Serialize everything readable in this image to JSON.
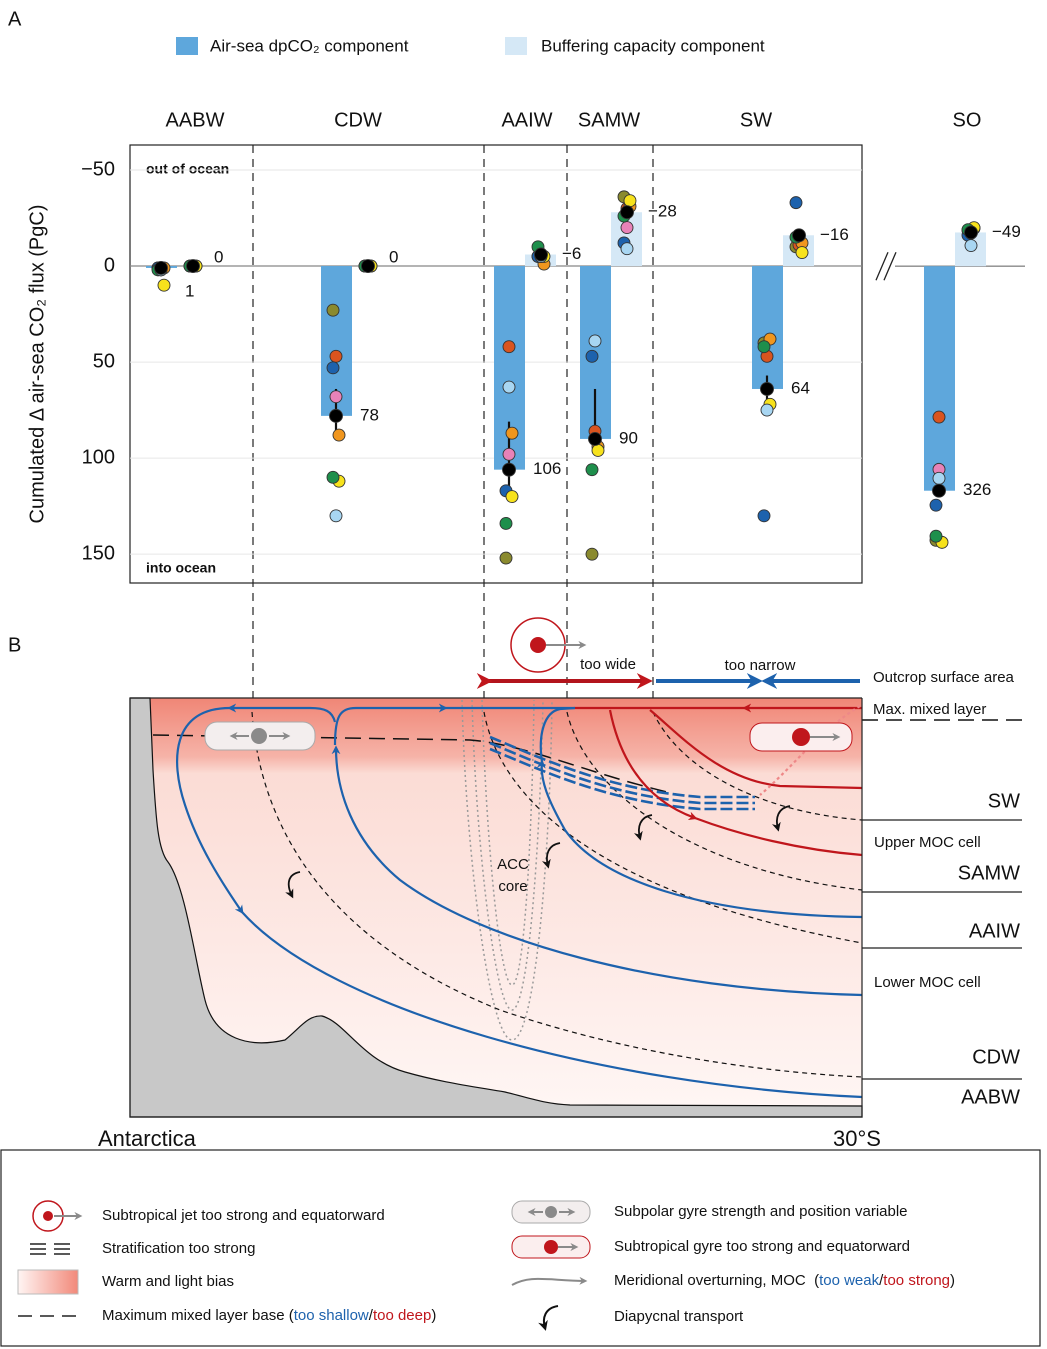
{
  "panel_labels": [
    "A",
    "B"
  ],
  "chart_data": [
    {
      "type": "bar",
      "y_label": "Cumulated Δ air-sea CO₂ flux (PgC)",
      "annotations": [
        "out of ocean",
        "into ocean"
      ],
      "categories": [
        "AABW",
        "CDW",
        "AAIW",
        "SAMW",
        "SW"
      ],
      "series": [
        {
          "name": "Air-sea dpCO₂ component",
          "color": "#5ea7dc",
          "values": [
            1,
            78,
            106,
            90,
            64
          ],
          "whiskers": [
            null,
            [
              64,
              88
            ],
            [
              81,
              117
            ],
            [
              64,
              96
            ],
            [
              57,
              72
            ]
          ]
        },
        {
          "name": "Buffering capacity component",
          "color": "#d5e8f6",
          "values": [
            0,
            0,
            -6,
            -28,
            -16
          ],
          "value_labels": [
            "0",
            "0",
            "−6",
            "−28",
            "−16"
          ]
        }
      ],
      "mean_color": "#000000",
      "model_points": [
        {
          "color": "#8a8a2e",
          "values": [
            1,
            23,
            152,
            150,
            40
          ],
          "buffer_values": [
            0,
            0,
            -5,
            -36,
            -10
          ]
        },
        {
          "color": "#d9541f",
          "values": [
            1,
            47,
            42,
            86,
            47
          ],
          "buffer_values": [
            0,
            0,
            -5,
            -30,
            -11
          ]
        },
        {
          "color": "#f0961e",
          "values": [
            1,
            88,
            87,
            94,
            38
          ],
          "buffer_values": [
            0,
            0,
            -1,
            -31,
            -12
          ]
        },
        {
          "color": "#1d62ad",
          "values": [
            1,
            53,
            117,
            47,
            130
          ],
          "buffer_values": [
            0,
            0,
            -5,
            -12,
            -33
          ]
        },
        {
          "color": "#e882b8",
          "values": [
            2,
            68,
            98,
            null,
            null
          ],
          "buffer_values": [
            0,
            0,
            -5,
            -20,
            null
          ]
        },
        {
          "color": "#f7e21c",
          "values": [
            10,
            112,
            120,
            96,
            72
          ],
          "buffer_values": [
            0,
            0,
            -5,
            -34,
            -7
          ]
        },
        {
          "color": "#1e8f4c",
          "values": [
            2,
            110,
            134,
            106,
            42
          ],
          "buffer_values": [
            0,
            0,
            -10,
            -26,
            -15
          ]
        },
        {
          "color": "#a8d6f2",
          "values": [
            2,
            130,
            63,
            39,
            75
          ],
          "buffer_values": [
            0,
            0,
            -5,
            -9,
            -16
          ]
        }
      ],
      "ylim": [
        -63,
        165
      ],
      "inverted": true,
      "yticks": [
        {
          "value": -50,
          "label": "−50"
        },
        0,
        50,
        100,
        150
      ],
      "grid": true
    },
    {
      "type": "bar",
      "categories": [
        "SO"
      ],
      "series": [
        {
          "color": "#5ea7dc",
          "values": [
            326
          ]
        },
        {
          "color": "#d5e8f6",
          "values": [
            -49
          ],
          "value_labels": [
            "−49"
          ]
        }
      ],
      "mean_color": "#000000",
      "model_points": [
        {
          "color": "#8a8a2e",
          "values": [
            398
          ],
          "buffer_values": [
            -52
          ]
        },
        {
          "color": "#d9541f",
          "values": [
            219
          ],
          "buffer_values": [
            -50
          ]
        },
        {
          "color": "#f0961e",
          "values": [
            null
          ],
          "buffer_values": [
            -55
          ]
        },
        {
          "color": "#1d62ad",
          "values": [
            347
          ],
          "buffer_values": [
            -45
          ]
        },
        {
          "color": "#e882b8",
          "values": [
            295
          ],
          "buffer_values": [
            -48
          ]
        },
        {
          "color": "#f7e21c",
          "values": [
            401
          ],
          "buffer_values": [
            -56
          ]
        },
        {
          "color": "#1e8f4c",
          "values": [
            392
          ],
          "buffer_values": [
            -53
          ]
        },
        {
          "color": "#a8d6f2",
          "values": [
            308
          ],
          "buffer_values": [
            -30
          ]
        }
      ],
      "ylim": [
        -176,
        460
      ],
      "inverted": true,
      "axis_break": true
    }
  ],
  "diagram": {
    "too_wide": "too wide",
    "too_narrow": "too narrow",
    "outcrop": "Outcrop surface area",
    "mixed_layer": "Max. mixed layer",
    "water_masses": [
      "SW",
      "SAMW",
      "AAIW",
      "CDW",
      "AABW"
    ],
    "cells": [
      "Upper MOC cell",
      "Lower MOC cell"
    ],
    "acc_core": [
      "ACC",
      "core"
    ],
    "south": "Antarctica",
    "north": "30°S"
  },
  "legend": {
    "jet": "Subtropical jet too strong and equatorward",
    "stratification": "Stratification too strong",
    "bias": "Warm and light bias",
    "mixed_layer": [
      "Maximum mixed layer base (",
      "too shallow",
      "/",
      "too deep",
      ")"
    ],
    "subpolar": "Subpolar gyre strength and position variable",
    "subtropical": "Subtropical gyre too strong and equatorward",
    "moc": [
      "Meridional overturning, MOC  (",
      "too weak",
      "/",
      "too strong",
      ")"
    ],
    "diapycnal": "Diapycnal transport"
  }
}
